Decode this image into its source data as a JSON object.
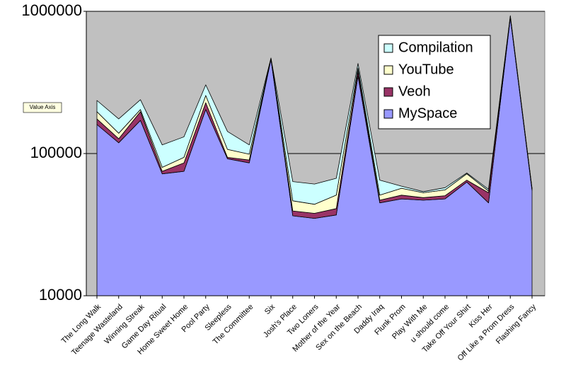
{
  "chart_data": {
    "type": "area",
    "stacked": true,
    "log_scale": true,
    "annotation": "Value Axis",
    "categories": [
      "The Long Walk",
      "Teenage Wasteland",
      "Winning Streak",
      "Game Day Ritual",
      "Home Sweet Home",
      "Pool Party",
      "Sleepless",
      "The Committee",
      "Six",
      "Josh's Place",
      "Two Loners",
      "Mother of the Year",
      "Sex on the Beach",
      "Daddy Iraq",
      "Flunk Prom",
      "Play With Me",
      "u should come",
      "Take Off Your Shirt",
      "Kiss Her",
      "Off Like a Prom Dress",
      "Flashing Fancy"
    ],
    "series": [
      {
        "name": "MySpace",
        "color": "#9999ff",
        "values": [
          160000,
          119000,
          171000,
          72000,
          75000,
          204000,
          92000,
          86000,
          460000,
          36500,
          35000,
          37000,
          350000,
          45000,
          48000,
          47000,
          48000,
          63000,
          45000,
          900000,
          55000
        ]
      },
      {
        "name": "Veoh",
        "color": "#993366",
        "values": [
          15000,
          8000,
          26000,
          3000,
          11000,
          24000,
          2000,
          4000,
          3000,
          3000,
          3000,
          4000,
          30000,
          2000,
          3000,
          2000,
          2500,
          2000,
          8000,
          10000,
          1000
        ]
      },
      {
        "name": "YouTube",
        "color": "#ffffcc",
        "values": [
          22000,
          12000,
          7000,
          5000,
          8000,
          28000,
          13000,
          9000,
          3000,
          7000,
          6000,
          10000,
          20000,
          4000,
          6000,
          4000,
          5000,
          7000,
          1500,
          10000,
          500
        ]
      },
      {
        "name": "Compilation",
        "color": "#ccffff",
        "values": [
          39000,
          36000,
          35000,
          35000,
          37000,
          48000,
          36000,
          16000,
          4000,
          17000,
          17000,
          16000,
          30000,
          14000,
          2000,
          1000,
          2000,
          1000,
          1500,
          13000,
          500
        ]
      }
    ],
    "ylim": [
      10000,
      1000000
    ],
    "yticks": [
      10000,
      100000,
      1000000
    ],
    "grid": true,
    "legend": "upper right",
    "background": "#c0c0c0"
  }
}
